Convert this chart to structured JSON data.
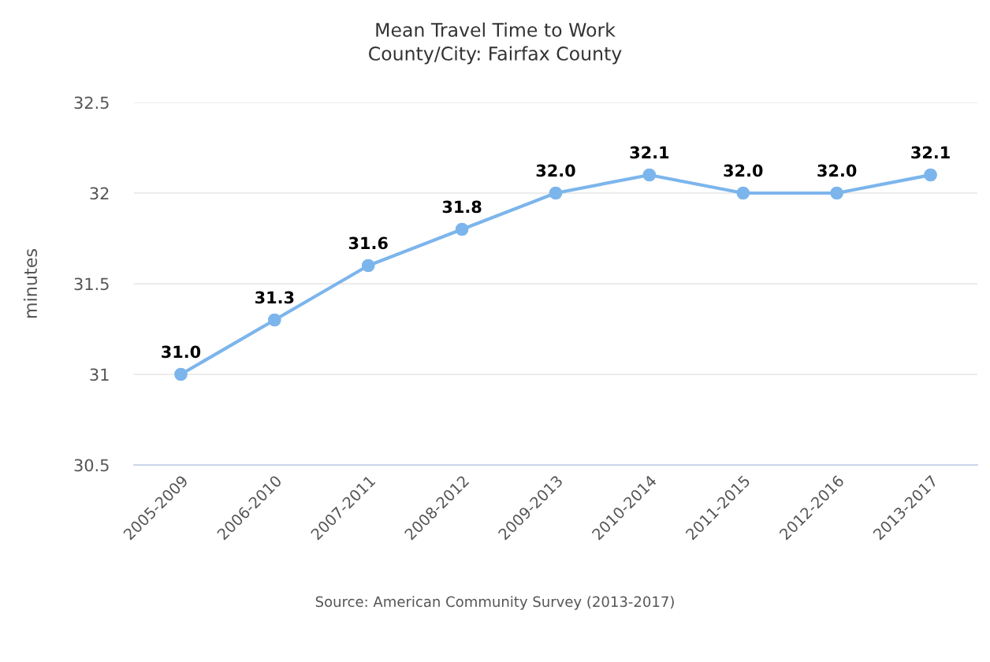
{
  "chart_data": {
    "type": "line",
    "title": "Mean Travel Time to Work\nCounty/City: Fairfax County",
    "ylabel": "minutes",
    "categories": [
      "2005-2009",
      "2006-2010",
      "2007-2011",
      "2008-2012",
      "2009-2013",
      "2010-2014",
      "2011-2015",
      "2012-2016",
      "2013-2017"
    ],
    "series": [
      {
        "color": "#7cb5ec",
        "values": [
          31.0,
          31.3,
          31.6,
          31.8,
          32.0,
          32.1,
          32.0,
          32.0,
          32.1
        ],
        "value_labels": [
          "31.0",
          "31.3",
          "31.6",
          "31.8",
          "32.0",
          "32.1",
          "32.0",
          "32.0",
          "32.1"
        ]
      }
    ],
    "ylim": [
      30.5,
      32.5
    ],
    "yticks": [
      30.5,
      31,
      31.5,
      32,
      32.5
    ],
    "grid": "y",
    "marker": "circle",
    "line_style": "solid",
    "annotations": [
      "Source: American Community Survey (2013-2017)"
    ]
  }
}
